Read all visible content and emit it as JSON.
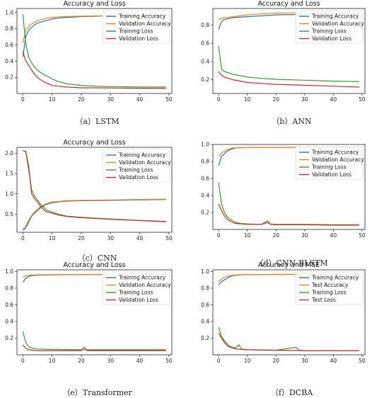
{
  "colors": {
    "s0": "#1f77b4",
    "s1": "#ff7f0e",
    "s2": "#2ca02c",
    "s3": "#d62728"
  },
  "chart_data": [
    {
      "type": "line",
      "caption": "（a）LSTM",
      "title": "Accuracy and Loss",
      "xlim": [
        -2,
        51
      ],
      "ylim": [
        0.0,
        1.05
      ],
      "xticks": [
        0,
        10,
        20,
        30,
        40,
        50
      ],
      "yticks": [
        0.2,
        0.4,
        0.6,
        0.8,
        1.0
      ],
      "yfmt": 1,
      "series": [
        {
          "name": "Training Accuracy",
          "x": [
            0,
            1,
            2,
            3,
            4,
            5,
            6,
            8,
            10,
            12,
            15,
            20,
            25,
            30,
            40,
            49
          ],
          "y": [
            0.45,
            0.7,
            0.78,
            0.82,
            0.85,
            0.87,
            0.88,
            0.9,
            0.92,
            0.93,
            0.94,
            0.95,
            0.955,
            0.96,
            0.96,
            0.965
          ]
        },
        {
          "name": "Validation Accuracy",
          "x": [
            0,
            1,
            2,
            3,
            4,
            5,
            6,
            8,
            10,
            12,
            15,
            20,
            25,
            30,
            40,
            49
          ],
          "y": [
            0.62,
            0.78,
            0.83,
            0.86,
            0.88,
            0.9,
            0.91,
            0.93,
            0.94,
            0.945,
            0.95,
            0.955,
            0.96,
            0.96,
            0.962,
            0.965
          ]
        },
        {
          "name": "Training Loss",
          "x": [
            0,
            1,
            2,
            3,
            4,
            5,
            6,
            8,
            10,
            12,
            15,
            20,
            25,
            30,
            40,
            49
          ],
          "y": [
            0.98,
            0.62,
            0.45,
            0.38,
            0.33,
            0.29,
            0.26,
            0.22,
            0.18,
            0.15,
            0.12,
            0.1,
            0.09,
            0.085,
            0.08,
            0.08
          ]
        },
        {
          "name": "Validation Loss",
          "x": [
            0,
            1,
            2,
            3,
            4,
            5,
            6,
            8,
            10,
            12,
            15,
            20,
            25,
            30,
            40,
            49
          ],
          "y": [
            0.52,
            0.4,
            0.35,
            0.29,
            0.24,
            0.2,
            0.17,
            0.13,
            0.1,
            0.09,
            0.08,
            0.07,
            0.07,
            0.068,
            0.065,
            0.065
          ]
        }
      ]
    },
    {
      "type": "line",
      "caption": "（b）ANN",
      "title": "Accuracy and Loss",
      "xlim": [
        -2,
        51
      ],
      "ylim": [
        0.05,
        0.98
      ],
      "xticks": [
        0,
        10,
        20,
        30,
        40,
        50
      ],
      "yticks": [
        0.2,
        0.4,
        0.6,
        0.8
      ],
      "yfmt": 1,
      "series": [
        {
          "name": "Training Accuracy",
          "x": [
            0,
            1,
            2,
            5,
            10,
            15,
            20,
            30,
            40,
            49
          ],
          "y": [
            0.75,
            0.84,
            0.86,
            0.88,
            0.89,
            0.9,
            0.91,
            0.915,
            0.92,
            0.92
          ]
        },
        {
          "name": "Validation Accuracy",
          "x": [
            0,
            1,
            2,
            5,
            10,
            15,
            20,
            30,
            40,
            49
          ],
          "y": [
            0.86,
            0.87,
            0.88,
            0.89,
            0.91,
            0.92,
            0.93,
            0.935,
            0.94,
            0.94
          ]
        },
        {
          "name": "Training Loss",
          "x": [
            0,
            1,
            2,
            5,
            10,
            15,
            20,
            30,
            40,
            49
          ],
          "y": [
            0.57,
            0.32,
            0.29,
            0.26,
            0.23,
            0.215,
            0.205,
            0.195,
            0.185,
            0.18
          ]
        },
        {
          "name": "Validation Loss",
          "x": [
            0,
            1,
            2,
            5,
            10,
            15,
            20,
            30,
            40,
            49
          ],
          "y": [
            0.29,
            0.25,
            0.23,
            0.2,
            0.17,
            0.16,
            0.15,
            0.14,
            0.13,
            0.12
          ]
        }
      ]
    },
    {
      "type": "line",
      "caption": "（c）CNN",
      "title": "Accuracy and Loss",
      "xlim": [
        -2,
        51
      ],
      "ylim": [
        0.05,
        2.15
      ],
      "xticks": [
        0,
        10,
        20,
        30,
        40,
        50
      ],
      "yticks": [
        0.5,
        1.0,
        1.5,
        2.0
      ],
      "yfmt": 1,
      "series": [
        {
          "name": "Training Accuracy",
          "x": [
            0,
            1,
            2,
            3,
            4,
            5,
            6,
            7,
            8,
            10,
            12,
            15,
            20,
            30,
            40,
            49
          ],
          "y": [
            0.1,
            0.15,
            0.3,
            0.45,
            0.52,
            0.58,
            0.65,
            0.7,
            0.74,
            0.78,
            0.8,
            0.82,
            0.83,
            0.84,
            0.85,
            0.86
          ]
        },
        {
          "name": "Validation Accuracy",
          "x": [
            0,
            1,
            2,
            3,
            4,
            5,
            6,
            7,
            8,
            10,
            12,
            15,
            20,
            30,
            40,
            49
          ],
          "y": [
            0.12,
            0.2,
            0.35,
            0.47,
            0.55,
            0.62,
            0.68,
            0.72,
            0.76,
            0.8,
            0.81,
            0.83,
            0.84,
            0.85,
            0.86,
            0.87
          ]
        },
        {
          "name": "Training Loss",
          "x": [
            0,
            1,
            2,
            3,
            4,
            5,
            6,
            7,
            8,
            10,
            12,
            15,
            20,
            30,
            40,
            49
          ],
          "y": [
            2.07,
            2.05,
            1.6,
            1.1,
            0.95,
            0.85,
            0.75,
            0.68,
            0.6,
            0.55,
            0.5,
            0.45,
            0.42,
            0.38,
            0.34,
            0.32
          ]
        },
        {
          "name": "Validation Loss",
          "x": [
            0,
            1,
            2,
            3,
            4,
            5,
            6,
            7,
            8,
            10,
            12,
            15,
            20,
            30,
            40,
            49
          ],
          "y": [
            2.07,
            2.04,
            1.7,
            1.0,
            0.88,
            0.8,
            0.7,
            0.62,
            0.56,
            0.52,
            0.48,
            0.44,
            0.41,
            0.37,
            0.34,
            0.31
          ]
        }
      ]
    },
    {
      "type": "line",
      "caption": "（d）CNN-BLSTM",
      "title": "",
      "xlim": [
        -2,
        51
      ],
      "ylim": [
        0.0,
        1.0
      ],
      "xticks": [
        0,
        10,
        20,
        30,
        40,
        50
      ],
      "yticks": [
        0.2,
        0.4,
        0.6,
        0.8,
        1.0
      ],
      "yfmt": 1,
      "series": [
        {
          "name": "Training Accuracy",
          "x": [
            0,
            1,
            2,
            3,
            4,
            5,
            6,
            8,
            10,
            15,
            20,
            30,
            40,
            49
          ],
          "y": [
            0.75,
            0.86,
            0.89,
            0.92,
            0.94,
            0.95,
            0.96,
            0.962,
            0.965,
            0.965,
            0.965,
            0.966,
            0.967,
            0.967
          ]
        },
        {
          "name": "Validation Accuracy",
          "x": [
            0,
            1,
            2,
            3,
            4,
            5,
            6,
            8,
            10,
            15,
            20,
            30,
            40,
            49
          ],
          "y": [
            0.86,
            0.9,
            0.92,
            0.94,
            0.95,
            0.96,
            0.962,
            0.964,
            0.965,
            0.966,
            0.966,
            0.967,
            0.967,
            0.968
          ]
        },
        {
          "name": "Training Loss",
          "x": [
            0,
            1,
            2,
            3,
            4,
            5,
            6,
            8,
            10,
            15,
            17,
            18,
            20,
            30,
            40,
            49
          ],
          "y": [
            0.55,
            0.3,
            0.2,
            0.15,
            0.12,
            0.1,
            0.08,
            0.07,
            0.065,
            0.06,
            0.08,
            0.065,
            0.06,
            0.06,
            0.055,
            0.055
          ]
        },
        {
          "name": "Validation Loss",
          "x": [
            0,
            1,
            2,
            3,
            4,
            5,
            6,
            8,
            10,
            15,
            17,
            18,
            20,
            30,
            40,
            49
          ],
          "y": [
            0.3,
            0.22,
            0.16,
            0.12,
            0.1,
            0.08,
            0.07,
            0.065,
            0.06,
            0.06,
            0.1,
            0.06,
            0.055,
            0.055,
            0.05,
            0.05
          ]
        }
      ]
    },
    {
      "type": "line",
      "caption": "（e）Transformer",
      "title": "Accuracy and Loss",
      "xlim": [
        -2,
        51
      ],
      "ylim": [
        0.0,
        1.02
      ],
      "xticks": [
        0,
        10,
        20,
        30,
        40,
        50
      ],
      "yticks": [
        0.2,
        0.4,
        0.6,
        0.8,
        1.0
      ],
      "yfmt": 1,
      "series": [
        {
          "name": "Training Accuracy",
          "x": [
            0,
            1,
            2,
            3,
            5,
            10,
            20,
            30,
            40,
            49
          ],
          "y": [
            0.87,
            0.92,
            0.94,
            0.95,
            0.955,
            0.96,
            0.962,
            0.964,
            0.965,
            0.965
          ]
        },
        {
          "name": "Validation Accuracy",
          "x": [
            0,
            1,
            2,
            3,
            5,
            10,
            20,
            30,
            40,
            49
          ],
          "y": [
            0.93,
            0.95,
            0.955,
            0.958,
            0.96,
            0.962,
            0.964,
            0.965,
            0.966,
            0.966
          ]
        },
        {
          "name": "Training Loss",
          "x": [
            0,
            1,
            2,
            3,
            5,
            10,
            20,
            30,
            40,
            49
          ],
          "y": [
            0.28,
            0.15,
            0.1,
            0.08,
            0.07,
            0.065,
            0.06,
            0.06,
            0.06,
            0.06
          ]
        },
        {
          "name": "Validation Loss",
          "x": [
            0,
            1,
            2,
            3,
            5,
            10,
            20,
            21,
            22,
            30,
            40,
            49
          ],
          "y": [
            0.12,
            0.08,
            0.06,
            0.055,
            0.05,
            0.05,
            0.05,
            0.09,
            0.05,
            0.05,
            0.05,
            0.05
          ]
        }
      ]
    },
    {
      "type": "line",
      "caption": "（f）DCBA",
      "title": "Accuracy and MSE",
      "xlim": [
        -2,
        51
      ],
      "ylim": [
        0.0,
        1.02
      ],
      "xticks": [
        0,
        10,
        20,
        30,
        40,
        50
      ],
      "yticks": [
        0.2,
        0.4,
        0.6,
        0.8,
        1.0
      ],
      "yfmt": 1,
      "series": [
        {
          "name": "Training Accuracy",
          "x": [
            0,
            1,
            2,
            3,
            4,
            5,
            6,
            8,
            10,
            20,
            30,
            40,
            49
          ],
          "y": [
            0.84,
            0.88,
            0.9,
            0.92,
            0.94,
            0.95,
            0.955,
            0.96,
            0.962,
            0.964,
            0.965,
            0.966,
            0.966
          ]
        },
        {
          "name": "Test Accuracy",
          "x": [
            0,
            1,
            2,
            3,
            4,
            5,
            6,
            8,
            10,
            20,
            30,
            40,
            49
          ],
          "y": [
            0.88,
            0.91,
            0.93,
            0.94,
            0.95,
            0.955,
            0.96,
            0.962,
            0.963,
            0.965,
            0.966,
            0.967,
            0.967
          ]
        },
        {
          "name": "Training Loss",
          "x": [
            0,
            1,
            2,
            3,
            4,
            5,
            6,
            7,
            8,
            10,
            20,
            27,
            28,
            30,
            40,
            49
          ],
          "y": [
            0.33,
            0.22,
            0.17,
            0.13,
            0.1,
            0.09,
            0.08,
            0.12,
            0.07,
            0.06,
            0.055,
            0.09,
            0.055,
            0.05,
            0.05,
            0.05
          ]
        },
        {
          "name": "Test Loss",
          "x": [
            0,
            1,
            2,
            3,
            4,
            5,
            6,
            8,
            10,
            20,
            30,
            40,
            49
          ],
          "y": [
            0.26,
            0.2,
            0.15,
            0.11,
            0.09,
            0.08,
            0.07,
            0.065,
            0.06,
            0.055,
            0.05,
            0.05,
            0.05
          ]
        }
      ]
    }
  ]
}
